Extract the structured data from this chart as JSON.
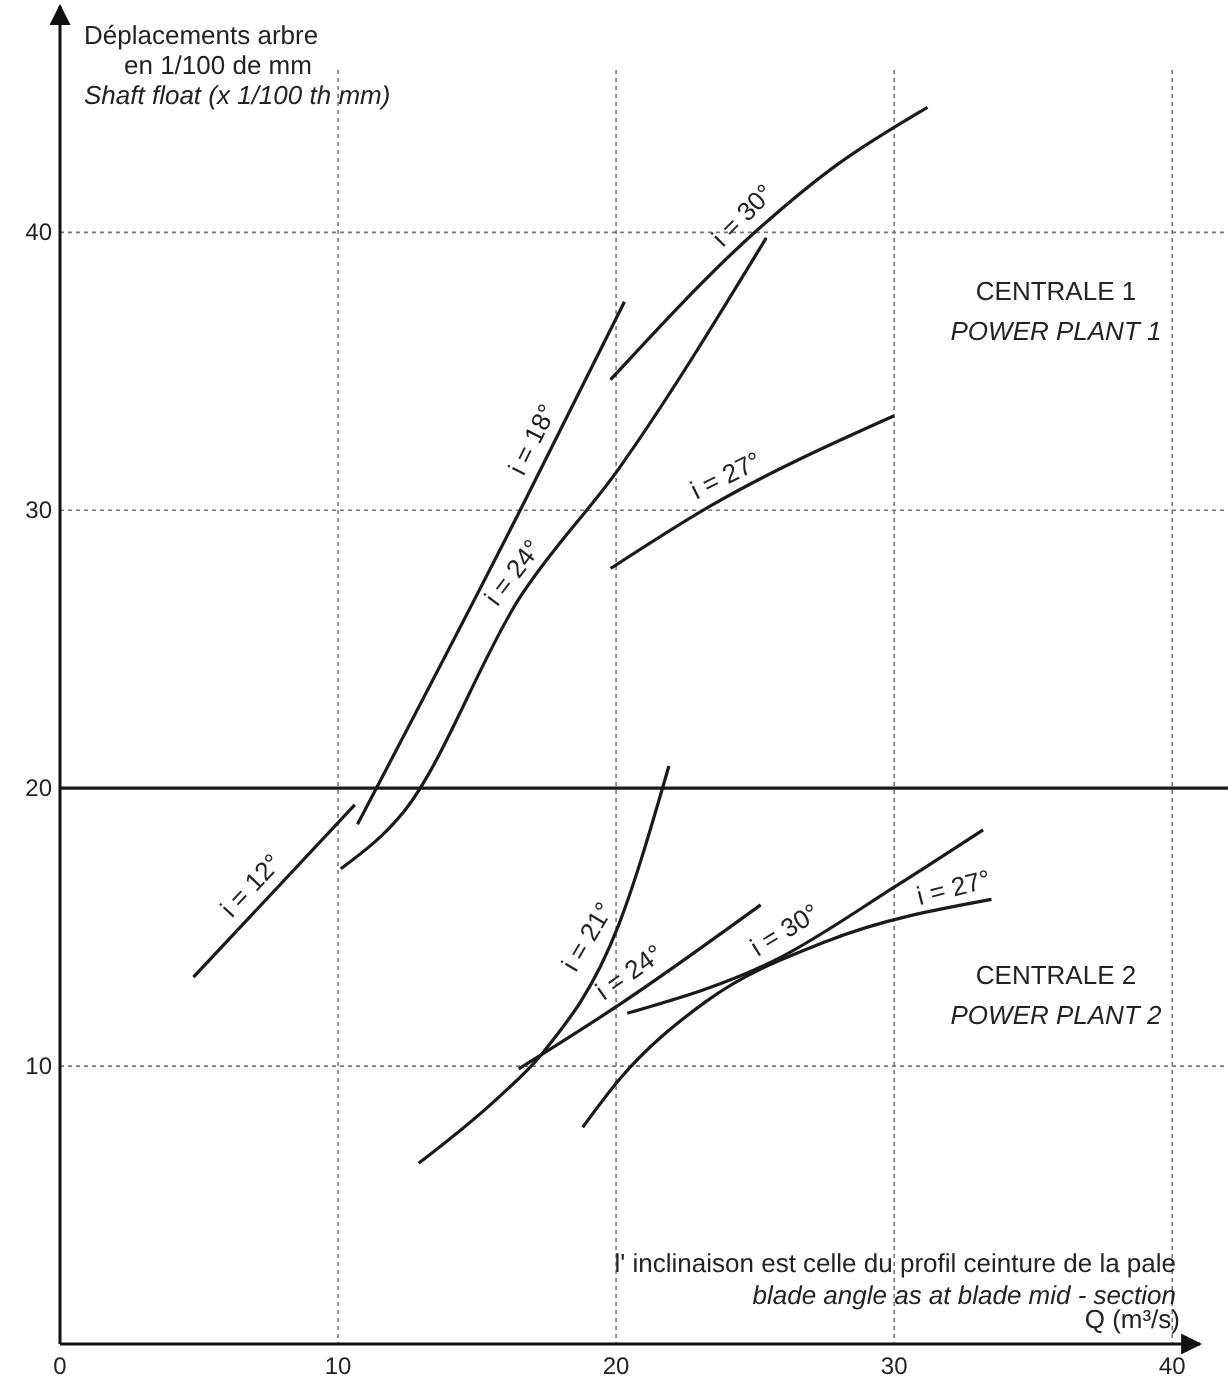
{
  "chart_data": {
    "type": "line",
    "ylabel": "Déplacements arbre\nen 1/100 de mm\nShaft float (x 1/100 th mm)",
    "xlabel": "Q (m³/s)",
    "xlim": [
      0,
      41
    ],
    "xticks": [
      0,
      10,
      20,
      30,
      40
    ],
    "ylim": [
      0,
      48
    ],
    "yticks": [
      10,
      20,
      30,
      40
    ],
    "grid": true,
    "marker": "none",
    "line_style": "solid",
    "ref_lines": [
      {
        "axis": "y",
        "value": 20,
        "color": "#1a1a1a"
      }
    ],
    "annotations": [
      "CENTRALE  1",
      "POWER PLANT 1",
      "CENTRALE  2",
      "POWER PLANT 2",
      "l' inclinaison est  celle du profil ceinture de la pale",
      "blade angle as at blade mid - section"
    ],
    "series": [
      {
        "name": "i = 12°",
        "color": "#1a1a1a",
        "x": [
          4.8,
          10.6
        ],
        "values": [
          13.2,
          19.4
        ]
      },
      {
        "name": "i = 18°",
        "color": "#1a1a1a",
        "x": [
          10.7,
          16.6,
          20.3
        ],
        "values": [
          18.7,
          30.1,
          37.5
        ]
      },
      {
        "name": "i = 24°",
        "color": "#1a1a1a",
        "x": [
          10.1,
          12.4,
          16.5,
          20.1,
          25.4
        ],
        "values": [
          17.1,
          19.2,
          26.8,
          31.5,
          39.8
        ]
      },
      {
        "name": "i = 30°",
        "color": "#1a1a1a",
        "x": [
          19.8,
          25.1,
          27.9,
          31.2
        ],
        "values": [
          34.7,
          40.1,
          42.4,
          44.5
        ]
      },
      {
        "name": "i = 27°",
        "color": "#1a1a1a",
        "x": [
          19.8,
          23.3,
          30.0
        ],
        "values": [
          27.9,
          30.1,
          33.4
        ]
      },
      {
        "name": "i = 21°",
        "color": "#1a1a1a",
        "x": [
          12.9,
          15.8,
          17.3,
          20.1,
          21.9
        ],
        "values": [
          6.5,
          8.9,
          10.4,
          15.1,
          20.8
        ]
      },
      {
        "name": "i = 24°",
        "color": "#1a1a1a",
        "x": [
          16.5,
          20.1,
          25.2
        ],
        "values": [
          9.9,
          12.2,
          15.8
        ]
      },
      {
        "name": "i = 30°",
        "color": "#1a1a1a",
        "x": [
          20.4,
          25.7,
          30.1,
          33.2
        ],
        "values": [
          11.9,
          13.8,
          16.5,
          18.5
        ]
      },
      {
        "name": "i = 27°",
        "color": "#1a1a1a",
        "x": [
          18.8,
          20.1,
          23.2,
          27.6,
          33.5
        ],
        "values": [
          7.8,
          9.5,
          12.3,
          14.5,
          16.0
        ]
      }
    ]
  }
}
